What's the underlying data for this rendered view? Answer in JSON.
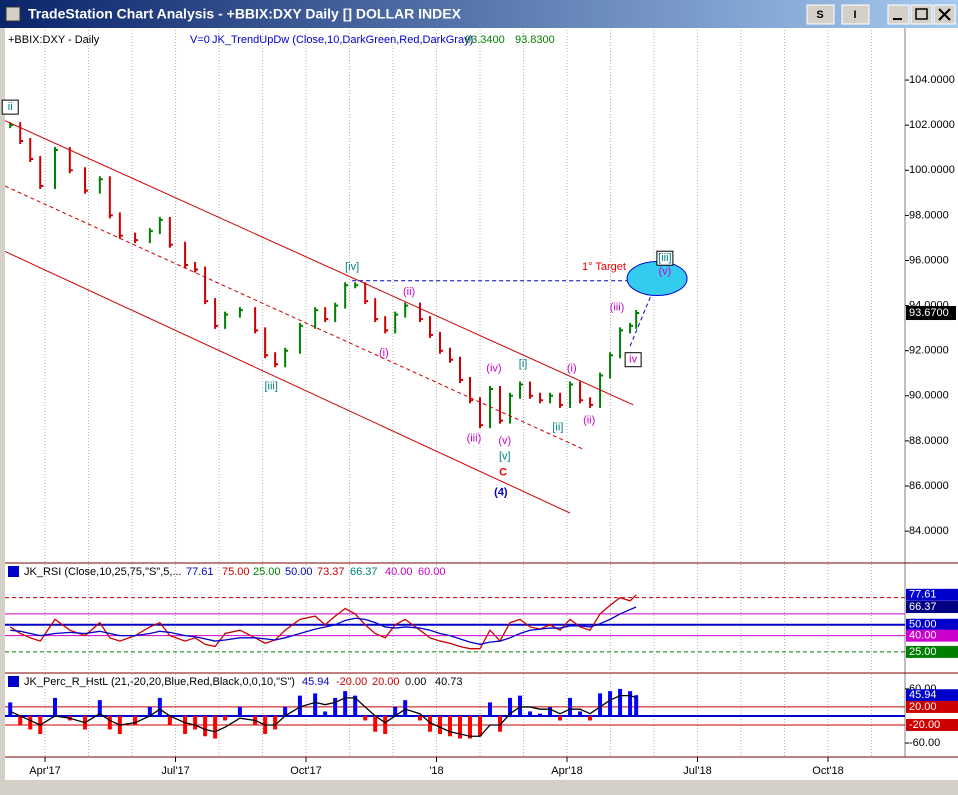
{
  "window": {
    "title": "TradeStation Chart Analysis - +BBIX:DXY Daily [] DOLLAR INDEX",
    "buttons": [
      "S",
      "I"
    ]
  },
  "chart_data": [
    {
      "type": "line",
      "title": "+BBIX:DXY - Daily",
      "readouts": [
        {
          "text": "V=0",
          "color": "#0000cc"
        },
        {
          "text": "JK_TrendUpDw (Close,10,DarkGreen,Red,DarkGray)",
          "color": "#0000cc"
        },
        {
          "text": "93.3400",
          "color": "#008000"
        },
        {
          "text": "93.8300",
          "color": "#008000"
        }
      ],
      "x": [
        0.2,
        0.43,
        0.66,
        0.89,
        1.23,
        1.57,
        1.92,
        2.26,
        2.49,
        2.72,
        3.07,
        3.41,
        3.64,
        3.87,
        4.22,
        4.45,
        4.68,
        4.91,
        5.14,
        5.48,
        5.83,
        6.06,
        6.29,
        6.52,
        6.86,
        7.21,
        7.44,
        7.67,
        7.9,
        8.13,
        8.36,
        8.59,
        8.82,
        9.05,
        9.28,
        9.62,
        9.85,
        10.08,
        10.31,
        10.54,
        10.77,
        11.0,
        11.23,
        11.46,
        11.69,
        11.92,
        12.15,
        12.38,
        12.61,
        12.84,
        13.07,
        13.3,
        13.53,
        13.76,
        13.99,
        14.22,
        14.45,
        14.59
      ],
      "values": [
        102.0,
        101.3,
        100.5,
        99.3,
        100.9,
        100.0,
        99.1,
        99.6,
        98.0,
        97.1,
        96.9,
        97.3,
        97.8,
        96.7,
        95.8,
        95.6,
        94.2,
        93.1,
        93.6,
        93.8,
        92.9,
        91.8,
        91.4,
        92.0,
        93.1,
        93.8,
        93.4,
        94.0,
        94.9,
        94.9,
        94.2,
        93.4,
        92.9,
        93.6,
        94.0,
        93.4,
        92.7,
        92.0,
        91.6,
        90.7,
        89.8,
        88.7,
        90.3,
        88.9,
        90.0,
        90.5,
        90.0,
        89.8,
        90.0,
        89.6,
        90.5,
        89.8,
        89.6,
        90.9,
        91.8,
        92.9,
        93.1,
        93.67
      ],
      "up_color": "#008000",
      "down_color": "#cc0000",
      "xlim": [
        0.08,
        20.77
      ],
      "xticks": [
        {
          "value": 1,
          "label": "Apr'17"
        },
        {
          "value": 4,
          "label": "Jul'17"
        },
        {
          "value": 7,
          "label": "Oct'17"
        },
        {
          "value": 10,
          "label": "'18"
        },
        {
          "value": 13,
          "label": "Apr'18"
        },
        {
          "value": 16,
          "label": "Jul'18"
        },
        {
          "value": 19,
          "label": "Oct'18"
        }
      ],
      "xminor": [
        1,
        2,
        3,
        4,
        5,
        6,
        7,
        8,
        9,
        10,
        11,
        12,
        13,
        14,
        15,
        16,
        17,
        18,
        19,
        20
      ],
      "ylim": [
        82.63,
        106.22
      ],
      "yticks": [
        {
          "value": 84,
          "label": "84.0000"
        },
        {
          "value": 86,
          "label": "86.0000"
        },
        {
          "value": 88,
          "label": "88.0000"
        },
        {
          "value": 90,
          "label": "90.0000"
        },
        {
          "value": 92,
          "label": "92.0000"
        },
        {
          "value": 94,
          "label": "94.0000"
        },
        {
          "value": 96,
          "label": "96.0000"
        },
        {
          "value": 98,
          "label": "98.0000"
        },
        {
          "value": 100,
          "label": "100.0000"
        },
        {
          "value": 102,
          "label": "102.0000"
        },
        {
          "value": 104,
          "label": "104.0000"
        }
      ],
      "last_price": {
        "value": 93.67,
        "label": "93.6700"
      },
      "trendlines": [
        {
          "x": [
            0.08,
            14.52
          ],
          "y": [
            102.2,
            89.6
          ],
          "color": "#cc0000",
          "dash": false
        },
        {
          "x": [
            0.08,
            13.07
          ],
          "y": [
            96.4,
            84.8
          ],
          "color": "#cc0000",
          "dash": false
        },
        {
          "x": [
            0.08,
            13.41
          ],
          "y": [
            99.3,
            87.6
          ],
          "color": "#cc0000",
          "dash": true
        },
        {
          "x": [
            8.06,
            15.14
          ],
          "y": [
            95.1,
            95.1
          ],
          "color": "#0000cc",
          "dash": true
        },
        {
          "x": [
            14.45,
            15.07
          ],
          "y": [
            92.2,
            95.1
          ],
          "color": "#0000cc",
          "dash": true
        }
      ],
      "target": {
        "x": 15.07,
        "y": 95.2,
        "color": "#33ccee"
      },
      "wave_labels": [
        {
          "text": "ii",
          "x": 0.2,
          "y": 102.8,
          "color": "#008080",
          "box": true
        },
        {
          "text": "[iii]",
          "x": 6.2,
          "y": 90.4,
          "color": "#008080"
        },
        {
          "text": "[iv]",
          "x": 8.06,
          "y": 95.7,
          "color": "#008080"
        },
        {
          "text": "(i)",
          "x": 8.79,
          "y": 91.9,
          "color": "#cc00cc"
        },
        {
          "text": "(ii)",
          "x": 9.37,
          "y": 94.6,
          "color": "#cc00cc"
        },
        {
          "text": "(iii)",
          "x": 10.86,
          "y": 88.1,
          "color": "#cc00cc"
        },
        {
          "text": "(iv)",
          "x": 11.32,
          "y": 91.2,
          "color": "#cc00cc"
        },
        {
          "text": "(v)",
          "x": 11.57,
          "y": 88.0,
          "color": "#cc00cc"
        },
        {
          "text": "[v]",
          "x": 11.57,
          "y": 87.3,
          "color": "#008080"
        },
        {
          "text": "C",
          "x": 11.53,
          "y": 86.6,
          "color": "#ee0000",
          "big": true
        },
        {
          "text": "(4)",
          "x": 11.48,
          "y": 85.7,
          "color": "#0000cc",
          "big": true
        },
        {
          "text": "[i]",
          "x": 11.99,
          "y": 91.4,
          "color": "#008080"
        },
        {
          "text": "[ii]",
          "x": 12.79,
          "y": 88.6,
          "color": "#008080"
        },
        {
          "text": "(i)",
          "x": 13.11,
          "y": 91.2,
          "color": "#cc00cc"
        },
        {
          "text": "(ii)",
          "x": 13.51,
          "y": 88.9,
          "color": "#cc00cc"
        },
        {
          "text": "(iii)",
          "x": 14.15,
          "y": 93.9,
          "color": "#cc00cc"
        },
        {
          "text": "iv",
          "x": 14.52,
          "y": 91.6,
          "color": "#cc00cc",
          "box": true
        },
        {
          "text": "(v)",
          "x": 15.25,
          "y": 95.5,
          "color": "#cc00cc"
        },
        {
          "text": "[iii]",
          "x": 15.25,
          "y": 96.1,
          "color": "#008080",
          "box": true
        },
        {
          "text": "1° Target",
          "x": 13.85,
          "y": 95.7,
          "color": "#ee0000"
        }
      ]
    },
    {
      "type": "line",
      "title": "JK_RSI (Close,10,25,75,\"S\",5,...",
      "readouts": [
        {
          "text": "77.61",
          "color": "#0000cc"
        },
        {
          "text": "75.00",
          "color": "#cc0000"
        },
        {
          "text": "25.00",
          "color": "#008000"
        },
        {
          "text": "50.00",
          "color": "#0000cc"
        },
        {
          "text": "73.37",
          "color": "#cc0000"
        },
        {
          "text": "66.37",
          "color": "#008080"
        },
        {
          "text": "40.00",
          "color": "#cc00cc"
        },
        {
          "text": "60.00",
          "color": "#cc00cc"
        }
      ],
      "series": [
        {
          "color": "#cc0000",
          "values": [
            48,
            42,
            38,
            35,
            55,
            45,
            40,
            52,
            38,
            35,
            40,
            48,
            52,
            40,
            35,
            38,
            32,
            30,
            42,
            45,
            38,
            33,
            36,
            45,
            55,
            58,
            50,
            58,
            65,
            60,
            50,
            42,
            38,
            50,
            55,
            45,
            38,
            35,
            33,
            30,
            28,
            28,
            45,
            35,
            52,
            55,
            48,
            46,
            50,
            45,
            55,
            48,
            45,
            60,
            68,
            75,
            72,
            77.61
          ]
        },
        {
          "color": "#0000cc",
          "values": [
            45,
            44,
            42,
            40,
            42,
            43,
            42,
            44,
            42,
            40,
            40,
            42,
            44,
            43,
            40,
            39,
            37,
            35,
            36,
            38,
            38,
            37,
            36,
            38,
            42,
            46,
            48,
            50,
            54,
            56,
            55,
            52,
            48,
            47,
            48,
            47,
            45,
            42,
            40,
            37,
            34,
            32,
            34,
            35,
            38,
            42,
            45,
            46,
            47,
            47,
            49,
            49,
            48,
            51,
            55,
            60,
            64,
            66.37
          ]
        }
      ],
      "ylim": [
        6.5,
        106
      ],
      "levels": [
        {
          "value": 75,
          "color": "#cc0000",
          "dash": true
        },
        {
          "value": 60,
          "color": "#cc00cc"
        },
        {
          "value": 50,
          "color": "#0000cc",
          "width": 2
        },
        {
          "value": 40,
          "color": "#cc00cc"
        },
        {
          "value": 25,
          "color": "#008000",
          "dash": true
        }
      ],
      "axis_labels": [
        {
          "value": 77.61,
          "label": "77.61",
          "bg": "#0000cc"
        },
        {
          "value": 66.37,
          "label": "66.37",
          "bg": "#000080"
        },
        {
          "value": 50,
          "label": "50.00",
          "bg": "#0000cc"
        },
        {
          "value": 40,
          "label": "40.00",
          "bg": "#cc00cc"
        },
        {
          "value": 25,
          "label": "25.00",
          "bg": "#008000"
        }
      ]
    },
    {
      "type": "bar",
      "title": "JK_Perc_R_HstL (21,-20,20,Blue,Red,Black,0,0,10,\"S\")",
      "readouts": [
        {
          "text": "45.94",
          "color": "#0000cc"
        },
        {
          "text": "-20.00",
          "color": "#cc0000"
        },
        {
          "text": "20.00",
          "color": "#cc0000"
        },
        {
          "text": "0.00",
          "color": "#000000"
        },
        {
          "text": "40.73",
          "color": "#000000"
        }
      ],
      "series": [
        {
          "type": "bar",
          "pos_color": "#0000ff",
          "neg_color": "#ff0000",
          "values": [
            30,
            -20,
            -30,
            -40,
            40,
            -10,
            -30,
            35,
            -30,
            -40,
            -20,
            20,
            40,
            -20,
            -40,
            -30,
            -45,
            -50,
            -10,
            20,
            -20,
            -40,
            -30,
            20,
            45,
            50,
            10,
            40,
            55,
            45,
            -10,
            -35,
            -40,
            20,
            35,
            -10,
            -35,
            -40,
            -45,
            -50,
            -50,
            -45,
            30,
            -35,
            40,
            45,
            10,
            5,
            20,
            -10,
            40,
            10,
            -10,
            50,
            55,
            60,
            55,
            45.94
          ]
        },
        {
          "type": "line",
          "color": "#000000",
          "values": [
            10,
            0,
            -10,
            -20,
            0,
            -5,
            -15,
            5,
            -10,
            -20,
            -15,
            0,
            15,
            0,
            -15,
            -20,
            -30,
            -35,
            -25,
            -5,
            -10,
            -20,
            -20,
            0,
            20,
            30,
            25,
            30,
            40,
            40,
            20,
            0,
            -15,
            0,
            15,
            5,
            -15,
            -25,
            -35,
            -40,
            -45,
            -45,
            -20,
            -20,
            5,
            20,
            20,
            15,
            15,
            5,
            15,
            15,
            5,
            20,
            35,
            45,
            45,
            40.73
          ]
        }
      ],
      "ylim": [
        -91,
        93
      ],
      "levels": [
        {
          "value": 20,
          "color": "#cc0000"
        },
        {
          "value": 0,
          "color": "#0000cc",
          "width": 2
        },
        {
          "value": -20,
          "color": "#cc0000"
        }
      ],
      "axis_labels": [
        {
          "value": 60,
          "label": "60.00"
        },
        {
          "value": 45.94,
          "label": "45.94",
          "bg": "#0000cc"
        },
        {
          "value": 20,
          "label": "20.00",
          "bg": "#cc0000"
        },
        {
          "value": -20,
          "label": "-20.00",
          "bg": "#cc0000"
        },
        {
          "value": -60,
          "label": "-60.00"
        }
      ]
    }
  ]
}
